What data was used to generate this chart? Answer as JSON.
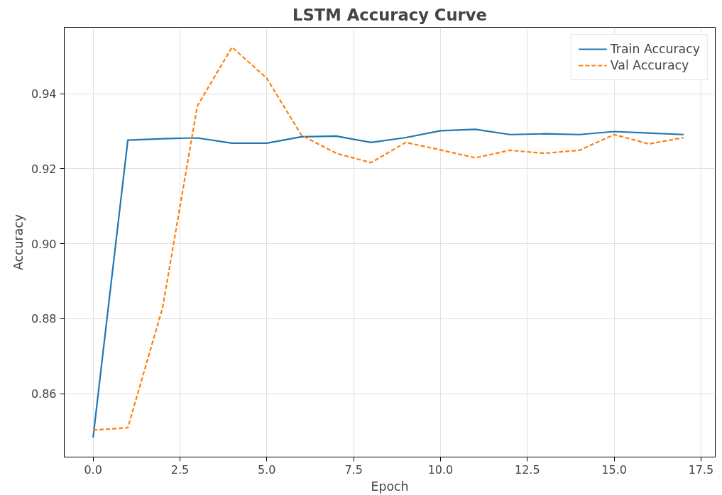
{
  "chart_data": {
    "type": "line",
    "title": "LSTM Accuracy Curve",
    "xlabel": "Epoch",
    "ylabel": "Accuracy",
    "x": [
      0,
      1,
      2,
      3,
      4,
      5,
      6,
      7,
      8,
      9,
      10,
      11,
      12,
      13,
      14,
      15,
      16,
      17
    ],
    "xlim": [
      -0.83,
      17.91
    ],
    "ylim": [
      0.8431,
      0.9577
    ],
    "xticks": [
      {
        "value": 0,
        "label": "0.0"
      },
      {
        "value": 2.5,
        "label": "2.5"
      },
      {
        "value": 5,
        "label": "5.0"
      },
      {
        "value": 7.5,
        "label": "7.5"
      },
      {
        "value": 10,
        "label": "10.0"
      },
      {
        "value": 12.5,
        "label": "12.5"
      },
      {
        "value": 15,
        "label": "15.0"
      },
      {
        "value": 17.5,
        "label": "17.5"
      }
    ],
    "yticks": [
      {
        "value": 0.86,
        "label": "0.86"
      },
      {
        "value": 0.88,
        "label": "0.88"
      },
      {
        "value": 0.9,
        "label": "0.90"
      },
      {
        "value": 0.92,
        "label": "0.92"
      },
      {
        "value": 0.94,
        "label": "0.94"
      }
    ],
    "grid": true,
    "legend": "top right",
    "series": [
      {
        "name": "Train Accuracy",
        "color": "#1f77b4",
        "line_style": "solid",
        "values": [
          0.8483,
          0.9276,
          0.928,
          0.9282,
          0.9268,
          0.9268,
          0.9285,
          0.9287,
          0.927,
          0.9283,
          0.9301,
          0.9305,
          0.9291,
          0.9293,
          0.9291,
          0.9299,
          0.9295,
          0.9291
        ]
      },
      {
        "name": "Val Accuracy",
        "color": "#ff7f0e",
        "line_style": "dashed",
        "values": [
          0.8503,
          0.8509,
          0.8829,
          0.9367,
          0.9524,
          0.9441,
          0.9289,
          0.9241,
          0.9216,
          0.927,
          0.925,
          0.9229,
          0.9249,
          0.9241,
          0.9249,
          0.9291,
          0.9266,
          0.9283
        ]
      }
    ]
  }
}
